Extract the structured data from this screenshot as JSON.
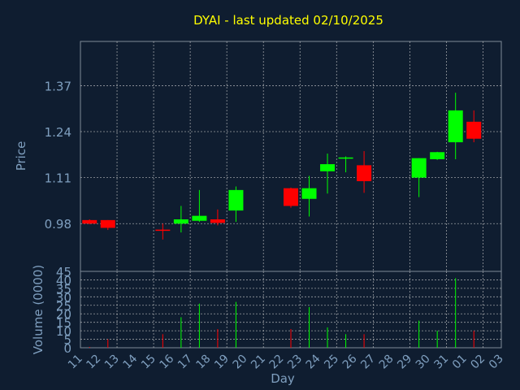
{
  "chart_data": {
    "type": "candlestick",
    "title": "DYAI - last updated 02/10/2025",
    "price_axis": {
      "label": "Price",
      "ylim": [
        0.845,
        1.495
      ],
      "ticks": [
        "0.98",
        "1.11",
        "1.24",
        "1.37"
      ]
    },
    "volume_axis": {
      "label": "Volume (0000)",
      "ylim": [
        0,
        45
      ],
      "ticks": [
        "0",
        "5",
        "10",
        "15",
        "20",
        "25",
        "30",
        "35",
        "40",
        "45"
      ]
    },
    "x_axis": {
      "label": "Day",
      "ticks": [
        "11",
        "12",
        "13",
        "14",
        "15",
        "16",
        "17",
        "18",
        "19",
        "20",
        "21",
        "22",
        "23",
        "24",
        "25",
        "26",
        "27",
        "28",
        "29",
        "30",
        "31",
        "01",
        "02",
        "03"
      ]
    },
    "candles": [
      {
        "x": 0,
        "open": 0.99,
        "close": 0.98,
        "high": 0.992,
        "low": 0.978,
        "volume": 0.5
      },
      {
        "x": 1,
        "open": 0.99,
        "close": 0.968,
        "high": 0.99,
        "low": 0.962,
        "volume": 5
      },
      {
        "x": 4,
        "open": 0.963,
        "close": 0.96,
        "high": 0.98,
        "low": 0.935,
        "volume": 8
      },
      {
        "x": 5,
        "open": 0.98,
        "close": 0.992,
        "high": 1.03,
        "low": 0.955,
        "volume": 18
      },
      {
        "x": 6,
        "open": 0.988,
        "close": 1.002,
        "high": 1.075,
        "low": 0.985,
        "volume": 26
      },
      {
        "x": 7,
        "open": 0.992,
        "close": 0.982,
        "high": 1.02,
        "low": 0.975,
        "volume": 11
      },
      {
        "x": 8,
        "open": 1.017,
        "close": 1.075,
        "high": 1.085,
        "low": 0.985,
        "volume": 27
      },
      {
        "x": 11,
        "open": 1.08,
        "close": 1.03,
        "high": 1.082,
        "low": 1.025,
        "volume": 11
      },
      {
        "x": 12,
        "open": 1.05,
        "close": 1.08,
        "high": 1.115,
        "low": 1.0,
        "volume": 24
      },
      {
        "x": 13,
        "open": 1.128,
        "close": 1.148,
        "high": 1.178,
        "low": 1.065,
        "volume": 12
      },
      {
        "x": 14,
        "open": 1.165,
        "close": 1.167,
        "high": 1.17,
        "low": 1.125,
        "volume": 8
      },
      {
        "x": 15,
        "open": 1.145,
        "close": 1.1,
        "high": 1.185,
        "low": 1.067,
        "volume": 8
      },
      {
        "x": 18,
        "open": 1.11,
        "close": 1.165,
        "high": 1.165,
        "low": 1.055,
        "volume": 16
      },
      {
        "x": 19,
        "open": 1.162,
        "close": 1.182,
        "high": 1.183,
        "low": 1.16,
        "volume": 10
      },
      {
        "x": 20,
        "open": 1.21,
        "close": 1.3,
        "high": 1.35,
        "low": 1.162,
        "volume": 41
      },
      {
        "x": 21,
        "open": 1.268,
        "close": 1.22,
        "high": 1.3,
        "low": 1.21,
        "volume": 10
      }
    ],
    "colors": {
      "background": "#0f1d30",
      "plot_border": "#7f8b99",
      "grid": "#c8c8c8",
      "title": "#ffff00",
      "axis_text": "#7f9fbf",
      "up": "#00ff00",
      "down": "#ff0000"
    }
  }
}
